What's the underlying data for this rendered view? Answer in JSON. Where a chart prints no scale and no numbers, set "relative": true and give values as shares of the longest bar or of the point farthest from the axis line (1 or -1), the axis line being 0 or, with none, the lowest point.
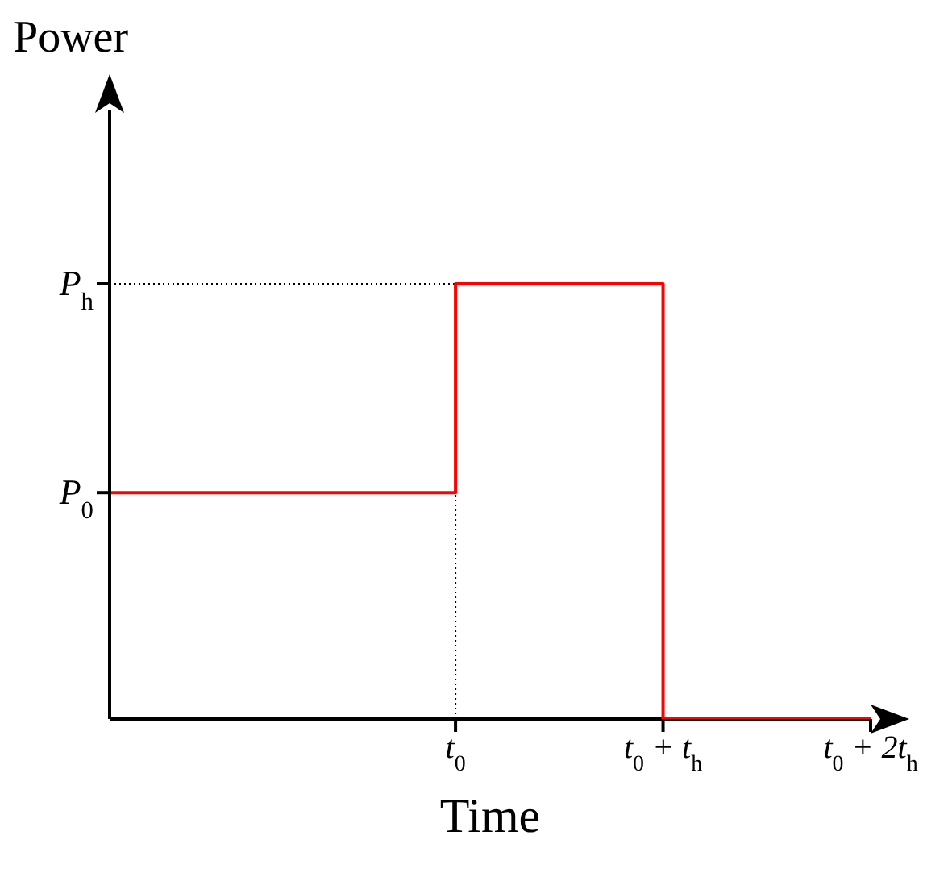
{
  "chart_data": {
    "type": "step",
    "xlabel": "Time",
    "ylabel": "Power",
    "relative": true,
    "categories": [
      null,
      null,
      null,
      null,
      null,
      "t$_{0}$",
      null,
      null,
      "t$_{0}$ + t$_{h}$",
      null,
      null,
      "t$_{0}$ + 2t$_{h}$"
    ],
    "series": [
      {
        "color": "#ff0000",
        "values": [
          0.52,
          0.52,
          0.52,
          0.52,
          0.52,
          1,
          1,
          1,
          0,
          0,
          0,
          0
        ]
      }
    ],
    "ref_lines": [
      {
        "axis": "y",
        "value": 0.52,
        "label": "P$_{0}$",
        "line_style": "solid",
        "color": "#000000"
      },
      {
        "axis": "y",
        "value": 1,
        "label": "P$_{h}$",
        "line_style": "dotted",
        "color": "#000000"
      },
      {
        "axis": "x",
        "value": "t$_{0}$",
        "line_style": "dotted",
        "color": "#000000"
      }
    ],
    "grid": false,
    "legend": false,
    "marker": "none"
  }
}
